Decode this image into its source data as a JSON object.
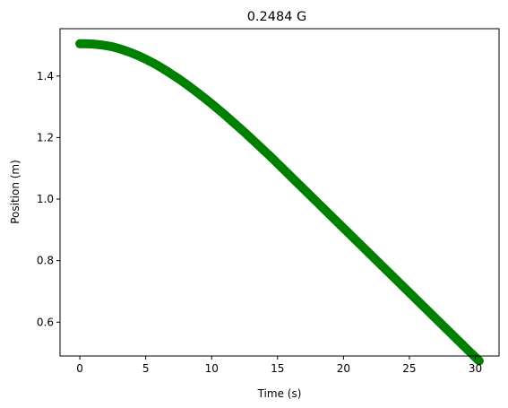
{
  "chart_data": {
    "type": "scatter",
    "title": "0.2484 G",
    "xlabel": "Time (s)",
    "ylabel": "Position (m)",
    "xlim": [
      -1.5,
      31.8
    ],
    "ylim": [
      0.49,
      1.554
    ],
    "grid": false,
    "legend": "none",
    "x_ticks": [
      0,
      5,
      10,
      15,
      20,
      25,
      30
    ],
    "x_tick_labels": [
      "0",
      "5",
      "10",
      "15",
      "20",
      "25",
      "30"
    ],
    "y_ticks": [
      0.6,
      0.8,
      1.0,
      1.2,
      1.4
    ],
    "y_tick_labels": [
      "0.6",
      "0.8",
      "1.0",
      "1.2",
      "1.4"
    ],
    "marker_color": "#008000",
    "series": [
      {
        "points": [
          [
            0.0,
            1.505
          ],
          [
            0.5,
            1.505
          ],
          [
            1.0,
            1.504
          ],
          [
            1.5,
            1.502
          ],
          [
            2.0,
            1.499
          ],
          [
            2.5,
            1.495
          ],
          [
            3.0,
            1.489
          ],
          [
            3.5,
            1.482
          ],
          [
            4.0,
            1.474
          ],
          [
            4.5,
            1.465
          ],
          [
            5.0,
            1.455
          ],
          [
            5.5,
            1.444
          ],
          [
            6.0,
            1.432
          ],
          [
            6.5,
            1.419
          ],
          [
            7.0,
            1.405
          ],
          [
            7.5,
            1.391
          ],
          [
            8.0,
            1.376
          ],
          [
            8.5,
            1.36
          ],
          [
            9.0,
            1.344
          ],
          [
            9.5,
            1.327
          ],
          [
            10.0,
            1.31
          ],
          [
            10.5,
            1.292
          ],
          [
            11.0,
            1.274
          ],
          [
            11.5,
            1.255
          ],
          [
            12.0,
            1.236
          ],
          [
            12.5,
            1.217
          ],
          [
            13.0,
            1.197
          ],
          [
            13.5,
            1.177
          ],
          [
            14.0,
            1.157
          ],
          [
            14.5,
            1.137
          ],
          [
            15.0,
            1.116
          ],
          [
            15.5,
            1.095
          ],
          [
            16.0,
            1.074
          ],
          [
            16.5,
            1.053
          ],
          [
            17.0,
            1.032
          ],
          [
            17.5,
            1.011
          ],
          [
            18.0,
            0.99
          ],
          [
            18.5,
            0.969
          ],
          [
            19.0,
            0.948
          ],
          [
            19.5,
            0.927
          ],
          [
            20.0,
            0.906
          ],
          [
            20.5,
            0.885
          ],
          [
            21.0,
            0.864
          ],
          [
            21.5,
            0.843
          ],
          [
            22.0,
            0.822
          ],
          [
            22.5,
            0.801
          ],
          [
            23.0,
            0.78
          ],
          [
            23.5,
            0.759
          ],
          [
            24.0,
            0.738
          ],
          [
            24.5,
            0.717
          ],
          [
            25.0,
            0.696
          ],
          [
            25.5,
            0.675
          ],
          [
            26.0,
            0.654
          ],
          [
            26.5,
            0.633
          ],
          [
            27.0,
            0.612
          ],
          [
            27.5,
            0.591
          ],
          [
            28.0,
            0.57
          ],
          [
            28.5,
            0.549
          ],
          [
            29.0,
            0.528
          ],
          [
            29.5,
            0.507
          ],
          [
            30.0,
            0.486
          ],
          [
            30.3,
            0.474
          ]
        ]
      }
    ]
  }
}
